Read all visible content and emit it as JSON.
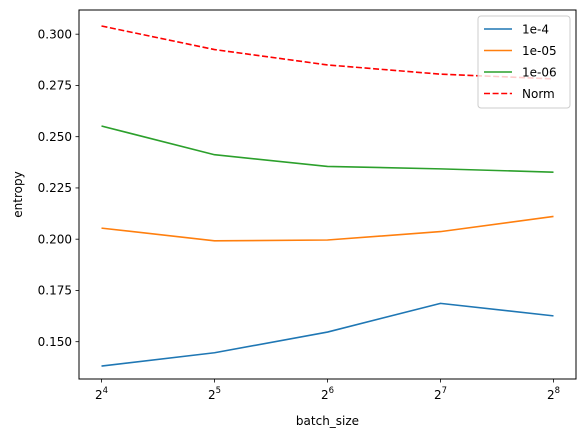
{
  "chart_data": {
    "type": "line",
    "x": [
      16,
      32,
      64,
      128,
      256
    ],
    "x_tick_labels": [
      {
        "base": "2",
        "exp": "4"
      },
      {
        "base": "2",
        "exp": "5"
      },
      {
        "base": "2",
        "exp": "6"
      },
      {
        "base": "2",
        "exp": "7"
      },
      {
        "base": "2",
        "exp": "8"
      }
    ],
    "xscale": "log2",
    "xlabel": "batch_size",
    "ylabel": "entropy",
    "ylim": [
      0.1318,
      0.3118
    ],
    "yticks": [
      0.15,
      0.175,
      0.2,
      0.225,
      0.25,
      0.275,
      0.3
    ],
    "ytick_labels": [
      "0.150",
      "0.175",
      "0.200",
      "0.225",
      "0.250",
      "0.275",
      "0.300"
    ],
    "grid": false,
    "legend_position": "top-right",
    "series": [
      {
        "name": "1e-4",
        "color": "#1f77b4",
        "dash": "solid",
        "values": [
          0.1381,
          0.1446,
          0.1547,
          0.1687,
          0.1626
        ]
      },
      {
        "name": "1e-05",
        "color": "#ff7f0e",
        "dash": "solid",
        "values": [
          0.2054,
          0.1992,
          0.1996,
          0.2037,
          0.2111
        ]
      },
      {
        "name": "1e-06",
        "color": "#2ca02c",
        "dash": "solid",
        "values": [
          0.2552,
          0.2412,
          0.2355,
          0.2343,
          0.2327
        ]
      },
      {
        "name": "Norm",
        "color": "#ff0000",
        "dash": "dashed",
        "values": [
          0.304,
          0.2925,
          0.285,
          0.2805,
          0.2782
        ]
      }
    ]
  }
}
